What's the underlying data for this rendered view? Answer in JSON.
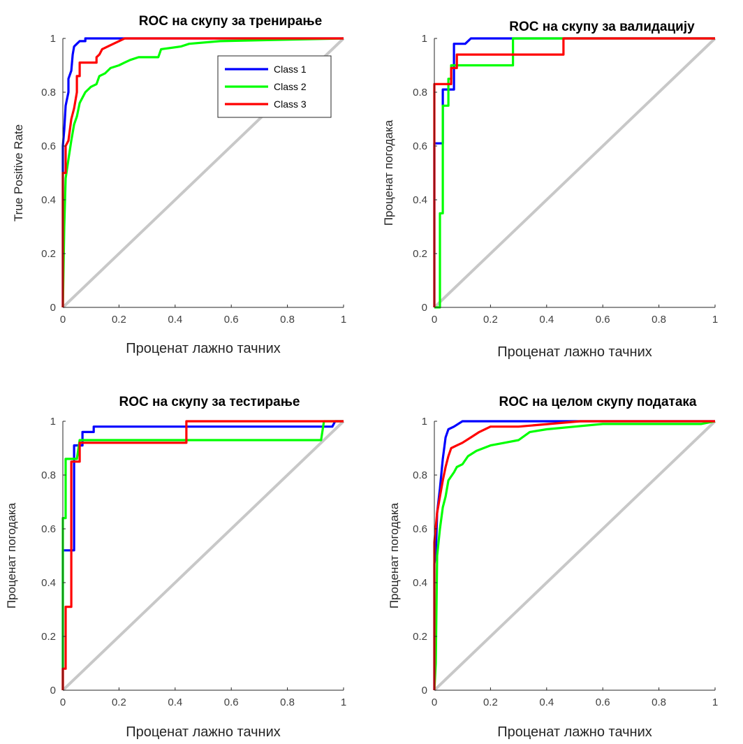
{
  "chart_data": [
    {
      "type": "line",
      "title": "ROC на скупу за тренирање",
      "xlabel": "Проценат лажно тачних",
      "ylabel": "True Positive Rate",
      "xlim": [
        0,
        1
      ],
      "ylim": [
        0,
        1
      ],
      "xticks": [
        "0",
        "0.2",
        "0.4",
        "0.6",
        "0.8",
        "1"
      ],
      "yticks": [
        "0",
        "0.2",
        "0.4",
        "0.6",
        "0.8",
        "1"
      ],
      "grid": false,
      "legend": {
        "show": true,
        "position": "top-right",
        "entries": [
          "Class 1",
          "Class 2",
          "Class 3"
        ]
      },
      "series": [
        {
          "name": "Class 1",
          "color": "#0000ff",
          "points": [
            [
              0,
              0
            ],
            [
              0,
              0.6
            ],
            [
              0.005,
              0.66
            ],
            [
              0.01,
              0.75
            ],
            [
              0.02,
              0.8
            ],
            [
              0.02,
              0.85
            ],
            [
              0.03,
              0.88
            ],
            [
              0.035,
              0.94
            ],
            [
              0.04,
              0.97
            ],
            [
              0.05,
              0.98
            ],
            [
              0.06,
              0.99
            ],
            [
              0.08,
              0.99
            ],
            [
              0.08,
              1.0
            ],
            [
              1,
              1
            ]
          ]
        },
        {
          "name": "Class 2",
          "color": "#00ff00",
          "points": [
            [
              0,
              0
            ],
            [
              0.005,
              0.3
            ],
            [
              0.01,
              0.48
            ],
            [
              0.02,
              0.55
            ],
            [
              0.03,
              0.62
            ],
            [
              0.04,
              0.68
            ],
            [
              0.05,
              0.71
            ],
            [
              0.06,
              0.76
            ],
            [
              0.07,
              0.78
            ],
            [
              0.08,
              0.8
            ],
            [
              0.1,
              0.82
            ],
            [
              0.12,
              0.83
            ],
            [
              0.13,
              0.86
            ],
            [
              0.15,
              0.87
            ],
            [
              0.17,
              0.89
            ],
            [
              0.2,
              0.9
            ],
            [
              0.22,
              0.91
            ],
            [
              0.24,
              0.92
            ],
            [
              0.27,
              0.93
            ],
            [
              0.34,
              0.93
            ],
            [
              0.35,
              0.96
            ],
            [
              0.42,
              0.97
            ],
            [
              0.45,
              0.98
            ],
            [
              0.56,
              0.99
            ],
            [
              1,
              1
            ]
          ]
        },
        {
          "name": "Class 3",
          "color": "#ff0000",
          "points": [
            [
              0,
              0
            ],
            [
              0,
              0.5
            ],
            [
              0.01,
              0.5
            ],
            [
              0.01,
              0.6
            ],
            [
              0.02,
              0.62
            ],
            [
              0.03,
              0.7
            ],
            [
              0.04,
              0.74
            ],
            [
              0.05,
              0.8
            ],
            [
              0.05,
              0.86
            ],
            [
              0.06,
              0.86
            ],
            [
              0.06,
              0.91
            ],
            [
              0.12,
              0.91
            ],
            [
              0.12,
              0.93
            ],
            [
              0.13,
              0.94
            ],
            [
              0.14,
              0.96
            ],
            [
              0.16,
              0.97
            ],
            [
              0.18,
              0.98
            ],
            [
              0.2,
              0.99
            ],
            [
              0.22,
              1.0
            ],
            [
              1,
              1
            ]
          ]
        }
      ]
    },
    {
      "type": "line",
      "title": "ROC на скупу за валидацију",
      "xlabel": "Проценат лажно тачних",
      "ylabel": "Проценат погодака",
      "xlim": [
        0,
        1
      ],
      "ylim": [
        0,
        1
      ],
      "xticks": [
        "0",
        "0.2",
        "0.4",
        "0.6",
        "0.8",
        "1"
      ],
      "yticks": [
        "0",
        "0.2",
        "0.4",
        "0.6",
        "0.8",
        "1"
      ],
      "grid": false,
      "legend": {
        "show": false
      },
      "series": [
        {
          "name": "Class 1",
          "color": "#0000ff",
          "points": [
            [
              0,
              0
            ],
            [
              0,
              0.61
            ],
            [
              0.03,
              0.61
            ],
            [
              0.03,
              0.81
            ],
            [
              0.07,
              0.81
            ],
            [
              0.07,
              0.98
            ],
            [
              0.11,
              0.98
            ],
            [
              0.13,
              1.0
            ],
            [
              1,
              1
            ]
          ]
        },
        {
          "name": "Class 2",
          "color": "#00ff00",
          "points": [
            [
              0,
              0
            ],
            [
              0.02,
              0.0
            ],
            [
              0.02,
              0.35
            ],
            [
              0.03,
              0.35
            ],
            [
              0.03,
              0.75
            ],
            [
              0.05,
              0.75
            ],
            [
              0.05,
              0.85
            ],
            [
              0.06,
              0.85
            ],
            [
              0.06,
              0.9
            ],
            [
              0.28,
              0.9
            ],
            [
              0.28,
              1.0
            ],
            [
              1,
              1
            ]
          ]
        },
        {
          "name": "Class 3",
          "color": "#ff0000",
          "points": [
            [
              0,
              0
            ],
            [
              0,
              0.83
            ],
            [
              0.06,
              0.83
            ],
            [
              0.06,
              0.89
            ],
            [
              0.08,
              0.89
            ],
            [
              0.08,
              0.94
            ],
            [
              0.46,
              0.94
            ],
            [
              0.46,
              1.0
            ],
            [
              1,
              1
            ]
          ]
        }
      ]
    },
    {
      "type": "line",
      "title": "ROC на скупу за тестирање",
      "xlabel": "Проценат лажно тачних",
      "ylabel": "Проценат погодака",
      "xlim": [
        0,
        1
      ],
      "ylim": [
        0,
        1
      ],
      "xticks": [
        "0",
        "0.2",
        "0.4",
        "0.6",
        "0.8",
        "1"
      ],
      "yticks": [
        "0",
        "0.2",
        "0.4",
        "0.6",
        "0.8",
        "1"
      ],
      "grid": false,
      "legend": {
        "show": false
      },
      "series": [
        {
          "name": "Class 1",
          "color": "#0000ff",
          "points": [
            [
              0,
              0
            ],
            [
              0,
              0.52
            ],
            [
              0.04,
              0.52
            ],
            [
              0.04,
              0.91
            ],
            [
              0.07,
              0.91
            ],
            [
              0.07,
              0.96
            ],
            [
              0.11,
              0.96
            ],
            [
              0.11,
              0.98
            ],
            [
              0.96,
              0.98
            ],
            [
              0.97,
              1.0
            ],
            [
              1,
              1
            ]
          ]
        },
        {
          "name": "Class 2",
          "color": "#00ff00",
          "points": [
            [
              0,
              0
            ],
            [
              0,
              0.64
            ],
            [
              0.01,
              0.64
            ],
            [
              0.01,
              0.86
            ],
            [
              0.05,
              0.86
            ],
            [
              0.06,
              0.93
            ],
            [
              0.92,
              0.93
            ],
            [
              0.93,
              1.0
            ],
            [
              1,
              1
            ]
          ]
        },
        {
          "name": "Class 3",
          "color": "#ff0000",
          "points": [
            [
              0,
              0
            ],
            [
              0,
              0.08
            ],
            [
              0.01,
              0.08
            ],
            [
              0.01,
              0.31
            ],
            [
              0.03,
              0.31
            ],
            [
              0.03,
              0.85
            ],
            [
              0.06,
              0.85
            ],
            [
              0.06,
              0.92
            ],
            [
              0.44,
              0.92
            ],
            [
              0.44,
              1.0
            ],
            [
              1,
              1
            ]
          ]
        }
      ]
    },
    {
      "type": "line",
      "title": "ROC на целом скупу података",
      "xlabel": "Проценат лажно тачних",
      "ylabel": "Проценат погодака",
      "xlim": [
        0,
        1
      ],
      "ylim": [
        0,
        1
      ],
      "xticks": [
        "0",
        "0.2",
        "0.4",
        "0.6",
        "0.8",
        "1"
      ],
      "yticks": [
        "0",
        "0.2",
        "0.4",
        "0.6",
        "0.8",
        "1"
      ],
      "grid": false,
      "legend": {
        "show": false
      },
      "series": [
        {
          "name": "Class 1",
          "color": "#0000ff",
          "points": [
            [
              0,
              0
            ],
            [
              0,
              0.47
            ],
            [
              0.005,
              0.5
            ],
            [
              0.01,
              0.66
            ],
            [
              0.02,
              0.75
            ],
            [
              0.03,
              0.86
            ],
            [
              0.04,
              0.94
            ],
            [
              0.05,
              0.97
            ],
            [
              0.07,
              0.98
            ],
            [
              0.1,
              1.0
            ],
            [
              1,
              1
            ]
          ]
        },
        {
          "name": "Class 2",
          "color": "#00ff00",
          "points": [
            [
              0,
              0
            ],
            [
              0.005,
              0.1
            ],
            [
              0.01,
              0.5
            ],
            [
              0.02,
              0.6
            ],
            [
              0.03,
              0.68
            ],
            [
              0.04,
              0.72
            ],
            [
              0.05,
              0.78
            ],
            [
              0.07,
              0.81
            ],
            [
              0.08,
              0.83
            ],
            [
              0.1,
              0.84
            ],
            [
              0.12,
              0.87
            ],
            [
              0.15,
              0.89
            ],
            [
              0.2,
              0.91
            ],
            [
              0.25,
              0.92
            ],
            [
              0.3,
              0.93
            ],
            [
              0.34,
              0.96
            ],
            [
              0.4,
              0.97
            ],
            [
              0.5,
              0.98
            ],
            [
              0.6,
              0.99
            ],
            [
              0.95,
              0.99
            ],
            [
              1,
              1
            ]
          ]
        },
        {
          "name": "Class 3",
          "color": "#ff0000",
          "points": [
            [
              0,
              0
            ],
            [
              0,
              0.55
            ],
            [
              0.01,
              0.66
            ],
            [
              0.02,
              0.72
            ],
            [
              0.03,
              0.78
            ],
            [
              0.04,
              0.83
            ],
            [
              0.05,
              0.87
            ],
            [
              0.06,
              0.9
            ],
            [
              0.08,
              0.91
            ],
            [
              0.1,
              0.92
            ],
            [
              0.13,
              0.94
            ],
            [
              0.16,
              0.96
            ],
            [
              0.2,
              0.98
            ],
            [
              0.3,
              0.98
            ],
            [
              0.52,
              1.0
            ],
            [
              1,
              1
            ]
          ]
        }
      ]
    }
  ]
}
